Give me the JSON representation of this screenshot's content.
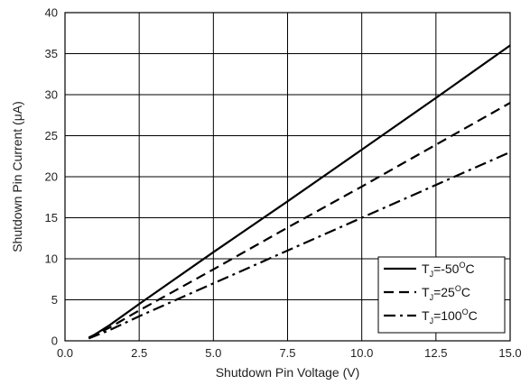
{
  "chart_data": {
    "type": "line",
    "xlabel": "Shutdown Pin Voltage (V)",
    "ylabel": "Shutdown Pin Current (μA)",
    "xlim": [
      0,
      15
    ],
    "ylim": [
      0,
      40
    ],
    "x_ticks": [
      "0.0",
      "2.5",
      "5.0",
      "7.5",
      "10.0",
      "12.5",
      "15.0"
    ],
    "y_ticks": [
      "0",
      "5",
      "10",
      "15",
      "20",
      "25",
      "30",
      "35",
      "40"
    ],
    "grid": true,
    "legend_position": "bottom-right",
    "series": [
      {
        "name": "T_J=-50°C",
        "legend": {
          "main": "T",
          "sub": "J",
          "mid": "=-50",
          "sup": "O",
          "end": "C"
        },
        "style": "solid",
        "points": [
          [
            0.8,
            0.3
          ],
          [
            1.5,
            1.9
          ],
          [
            2.5,
            4.5
          ],
          [
            5.0,
            10.8
          ],
          [
            7.5,
            17.0
          ],
          [
            10.0,
            23.3
          ],
          [
            12.5,
            29.6
          ],
          [
            15.0,
            36.0
          ]
        ]
      },
      {
        "name": "T_J=25°C",
        "legend": {
          "main": "T",
          "sub": "J",
          "mid": "=25",
          "sup": "O",
          "end": "C"
        },
        "style": "dashed",
        "points": [
          [
            0.8,
            0.4
          ],
          [
            1.5,
            1.6
          ],
          [
            2.5,
            3.7
          ],
          [
            5.0,
            8.7
          ],
          [
            7.5,
            13.8
          ],
          [
            10.0,
            18.8
          ],
          [
            12.5,
            23.9
          ],
          [
            15.0,
            29.0
          ]
        ]
      },
      {
        "name": "T_J=100°C",
        "legend": {
          "main": "T",
          "sub": "J",
          "mid": "=100",
          "sup": "O",
          "end": "C"
        },
        "style": "dashdot",
        "points": [
          [
            0.8,
            0.3
          ],
          [
            1.5,
            1.3
          ],
          [
            2.5,
            3.0
          ],
          [
            5.0,
            7.0
          ],
          [
            7.5,
            11.0
          ],
          [
            10.0,
            15.0
          ],
          [
            12.5,
            19.0
          ],
          [
            15.0,
            23.0
          ]
        ]
      }
    ]
  }
}
